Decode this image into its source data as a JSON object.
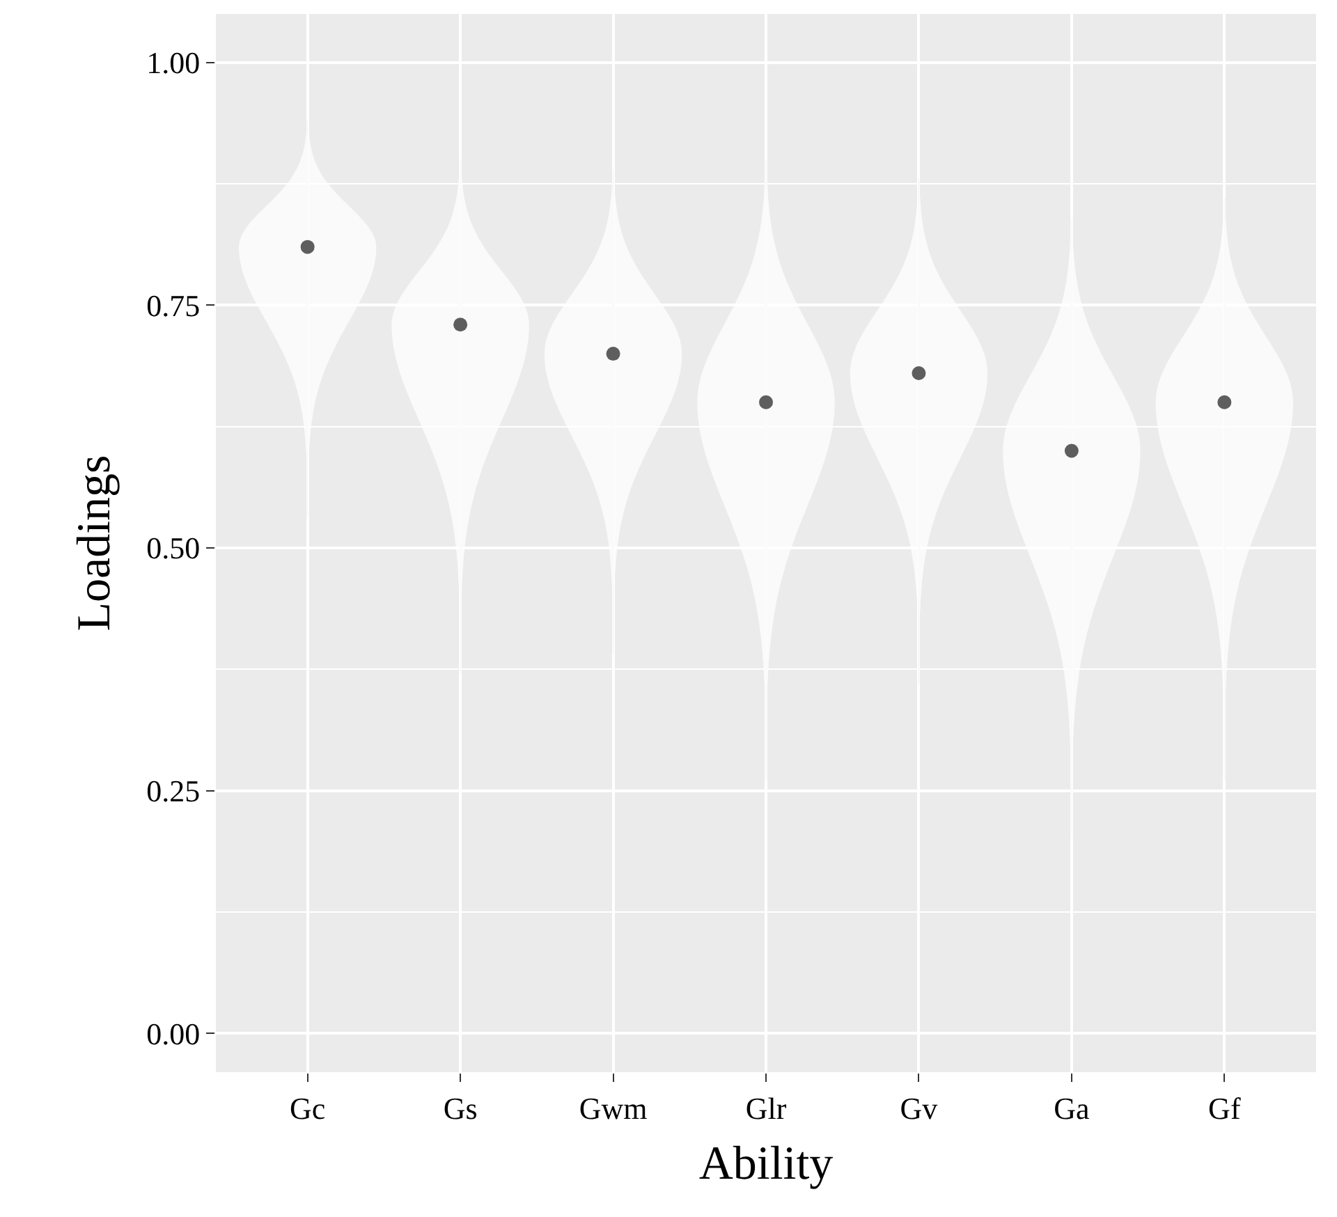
{
  "chart_data": {
    "type": "scatter",
    "xlabel": "Ability",
    "ylabel": "Loadings",
    "categories": [
      "Gc",
      "Gs",
      "Gwm",
      "Glr",
      "Gv",
      "Ga",
      "Gf"
    ],
    "series": [
      {
        "color": "#5e5e5e",
        "values": [
          0.81,
          0.73,
          0.7,
          0.65,
          0.68,
          0.6,
          0.65
        ],
        "errors": [
          [
            0.53,
            0.94
          ],
          [
            0.37,
            0.9
          ],
          [
            0.39,
            0.89
          ],
          [
            0.26,
            0.9
          ],
          [
            0.36,
            0.88
          ],
          [
            0.2,
            0.84
          ],
          [
            0.26,
            0.86
          ]
        ]
      }
    ],
    "ylim": [
      -0.04,
      1.05
    ],
    "yticks": [
      {
        "value": 0,
        "label": "0.00"
      },
      0.25,
      {
        "value": 0.5,
        "label": "0.50"
      },
      0.75,
      {
        "value": 1,
        "label": "1.00"
      }
    ],
    "grid": true,
    "marker": "circle"
  }
}
